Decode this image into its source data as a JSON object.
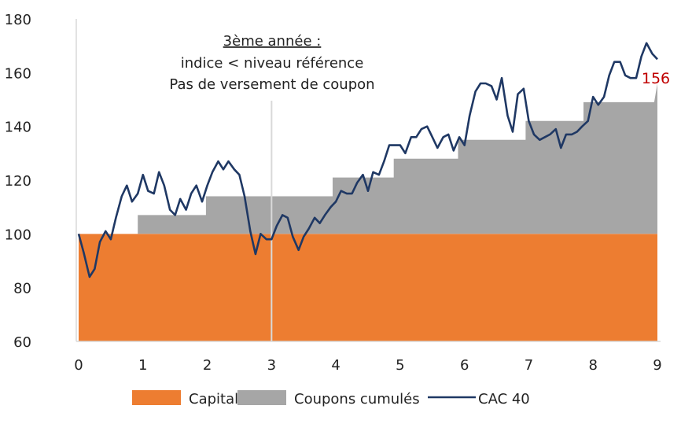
{
  "chart_data": {
    "type": "area",
    "xlim": [
      0,
      9
    ],
    "ylim": [
      60,
      180
    ],
    "x_ticks": [
      "0",
      "1",
      "2",
      "3",
      "4",
      "5",
      "6",
      "7",
      "8",
      "9"
    ],
    "y_ticks": [
      "60",
      "80",
      "100",
      "120",
      "140",
      "160",
      "180"
    ],
    "grid": false,
    "legend_position": "bottom",
    "annotation": {
      "line1": "3ème année :",
      "line2": "indice < niveau référence",
      "line3": "Pas de versement de coupon",
      "marker_x": 3
    },
    "end_label": "156",
    "colors": {
      "capital": "#ED7D31",
      "coupons": "#A6A6A6",
      "cac": "#1F3864",
      "end_label": "#C00000",
      "marker": "#D9D9D9",
      "axis": "#D9D9D9"
    },
    "series": [
      {
        "name": "Capital",
        "x": [
          0,
          9
        ],
        "y": [
          100,
          100
        ]
      },
      {
        "name": "Coupons cumulés",
        "x": [
          0,
          0.92,
          0.92,
          1.98,
          1.98,
          3.02,
          3.02,
          3.95,
          3.95,
          4.9,
          4.9,
          5.9,
          5.9,
          6.95,
          6.95,
          7.85,
          7.85,
          8.95,
          9.0
        ],
        "y": [
          100,
          100,
          107,
          107,
          114,
          114,
          114,
          114,
          121,
          121,
          128,
          128,
          135,
          135,
          142,
          142,
          149,
          149,
          156
        ]
      },
      {
        "name": "CAC 40",
        "x": [
          0,
          0.08,
          0.17,
          0.25,
          0.33,
          0.42,
          0.5,
          0.58,
          0.67,
          0.75,
          0.83,
          0.92,
          1.0,
          1.08,
          1.17,
          1.25,
          1.33,
          1.42,
          1.5,
          1.58,
          1.67,
          1.75,
          1.83,
          1.92,
          2.0,
          2.08,
          2.17,
          2.25,
          2.33,
          2.42,
          2.5,
          2.58,
          2.67,
          2.75,
          2.83,
          2.92,
          3.0,
          3.08,
          3.17,
          3.25,
          3.33,
          3.42,
          3.5,
          3.58,
          3.67,
          3.75,
          3.83,
          3.92,
          4.0,
          4.08,
          4.17,
          4.25,
          4.33,
          4.42,
          4.5,
          4.58,
          4.67,
          4.75,
          4.83,
          4.92,
          5.0,
          5.08,
          5.17,
          5.25,
          5.33,
          5.42,
          5.5,
          5.58,
          5.67,
          5.75,
          5.83,
          5.92,
          6.0,
          6.08,
          6.17,
          6.25,
          6.33,
          6.42,
          6.5,
          6.58,
          6.67,
          6.75,
          6.83,
          6.92,
          7.0,
          7.08,
          7.17,
          7.25,
          7.33,
          7.42,
          7.5,
          7.58,
          7.67,
          7.75,
          7.83,
          7.92,
          8.0,
          8.08,
          8.17,
          8.25,
          8.33,
          8.42,
          8.5,
          8.58,
          8.67,
          8.75,
          8.83,
          8.92,
          9.0
        ],
        "y": [
          100,
          93,
          84,
          87,
          97,
          101,
          98,
          106,
          114,
          118,
          112,
          115,
          122,
          116,
          115,
          123,
          118,
          109,
          107,
          113,
          109,
          115,
          118,
          112,
          118,
          123,
          127,
          124,
          127,
          124,
          122,
          114,
          101,
          92.5,
          100,
          98,
          98,
          103,
          107,
          106,
          99,
          94,
          99,
          102,
          106,
          104,
          107,
          110,
          112,
          116,
          115,
          115,
          119,
          122,
          116,
          123,
          122,
          127,
          133,
          133,
          133,
          130,
          136,
          136,
          139,
          140,
          136,
          132,
          136,
          137,
          131,
          136,
          133,
          144,
          153,
          156,
          156,
          155,
          150,
          158,
          144,
          138,
          152,
          154,
          142,
          137,
          135,
          136,
          137,
          139,
          132,
          137,
          137,
          138,
          140,
          142,
          151,
          148,
          151,
          159,
          164,
          164,
          159,
          158,
          158,
          166,
          171,
          167,
          165
        ]
      }
    ]
  }
}
